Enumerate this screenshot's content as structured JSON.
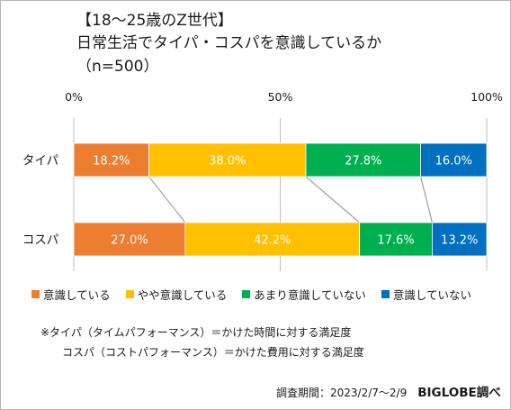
{
  "title": {
    "line1": "【18～25歳のZ世代】",
    "line2": "日常生活でタイパ・コスパを意識しているか",
    "line3": "（n=500）"
  },
  "chart_data": {
    "type": "bar",
    "orientation": "horizontal",
    "stacked_percent": true,
    "categories": [
      "タイパ",
      "コスパ"
    ],
    "xlim": [
      0,
      100
    ],
    "x_ticks": [
      {
        "value": 0,
        "label": "0%"
      },
      {
        "value": 50,
        "label": "50%"
      },
      {
        "value": 100,
        "label": "100%"
      }
    ],
    "series": [
      {
        "name": "意識している",
        "color": "#ed7d31",
        "values": [
          18.2,
          27.0
        ],
        "labels": [
          "18.2%",
          "27.0%"
        ]
      },
      {
        "name": "やや意識している",
        "color": "#ffc000",
        "values": [
          38.0,
          42.2
        ],
        "labels": [
          "38.0%",
          "42.2%"
        ]
      },
      {
        "name": "あまり意識していない",
        "color": "#00b050",
        "values": [
          27.8,
          17.6
        ],
        "labels": [
          "27.8%",
          "17.6%"
        ]
      },
      {
        "name": "意識していない",
        "color": "#0070c0",
        "values": [
          16.0,
          13.2
        ],
        "labels": [
          "16.0%",
          "13.2%"
        ]
      }
    ],
    "legend_position": "bottom",
    "grid": true
  },
  "notes": {
    "taipa": "※タイパ（タイムパフォーマンス）＝かけた時間に対する満足度",
    "kosupa": "コスパ（コストパフォーマンス）＝かけた費用に対する満足度"
  },
  "footer": {
    "survey_period": "調査期間：2023/2/7～2/9",
    "credit": "BIGLOBE調べ"
  }
}
